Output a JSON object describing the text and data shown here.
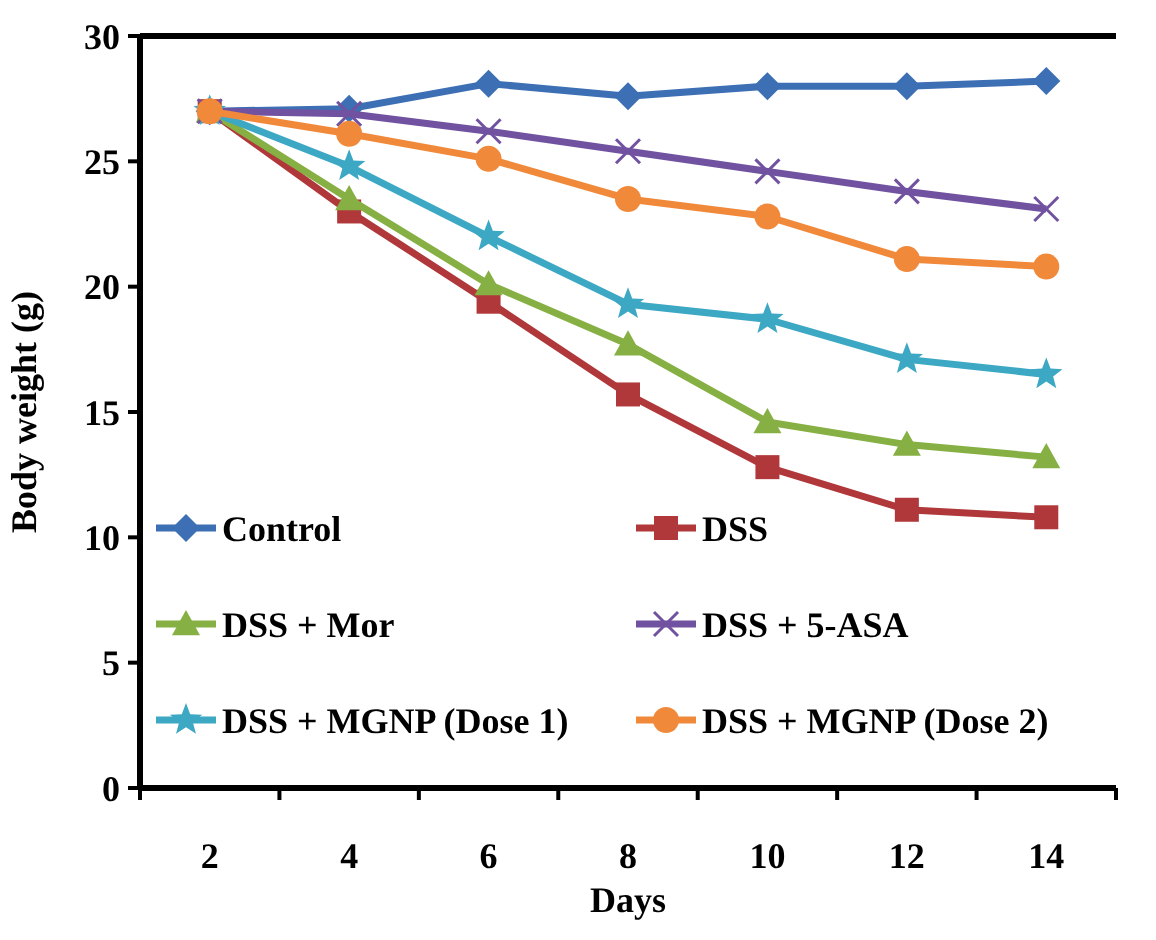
{
  "chart_data": {
    "type": "line",
    "xlabel": "Days",
    "ylabel": "Body weight (g)",
    "categories": [
      "2",
      "4",
      "6",
      "8",
      "10",
      "12",
      "14"
    ],
    "ylim": [
      0,
      30
    ],
    "yticks": [
      0,
      5,
      10,
      15,
      20,
      25,
      30
    ],
    "grid": false,
    "legend": "bottom",
    "series": [
      {
        "name": "Control",
        "color": "#3c6fb4",
        "marker": "diamond",
        "values": [
          27,
          27.1,
          28.1,
          27.6,
          28.0,
          28.0,
          28.2
        ]
      },
      {
        "name": "DSS",
        "color": "#b0383a",
        "marker": "square",
        "values": [
          27,
          23.0,
          19.4,
          15.7,
          12.8,
          11.1,
          10.8
        ]
      },
      {
        "name": "DSS + Mor",
        "color": "#86b043",
        "marker": "triangle",
        "values": [
          27,
          23.5,
          20.1,
          17.7,
          14.6,
          13.7,
          13.2
        ]
      },
      {
        "name": "DSS + 5-ASA",
        "color": "#7152a0",
        "marker": "cross",
        "values": [
          27,
          26.9,
          26.2,
          25.4,
          24.6,
          23.8,
          23.1
        ]
      },
      {
        "name": "DSS + MGNP (Dose 1)",
        "color": "#3ca8c4",
        "marker": "star",
        "values": [
          27,
          24.8,
          22.0,
          19.3,
          18.7,
          17.1,
          16.5
        ]
      },
      {
        "name": "DSS + MGNP (Dose 2)",
        "color": "#f0893a",
        "marker": "circle",
        "values": [
          27,
          26.1,
          25.1,
          23.5,
          22.8,
          21.1,
          20.8
        ]
      }
    ]
  }
}
